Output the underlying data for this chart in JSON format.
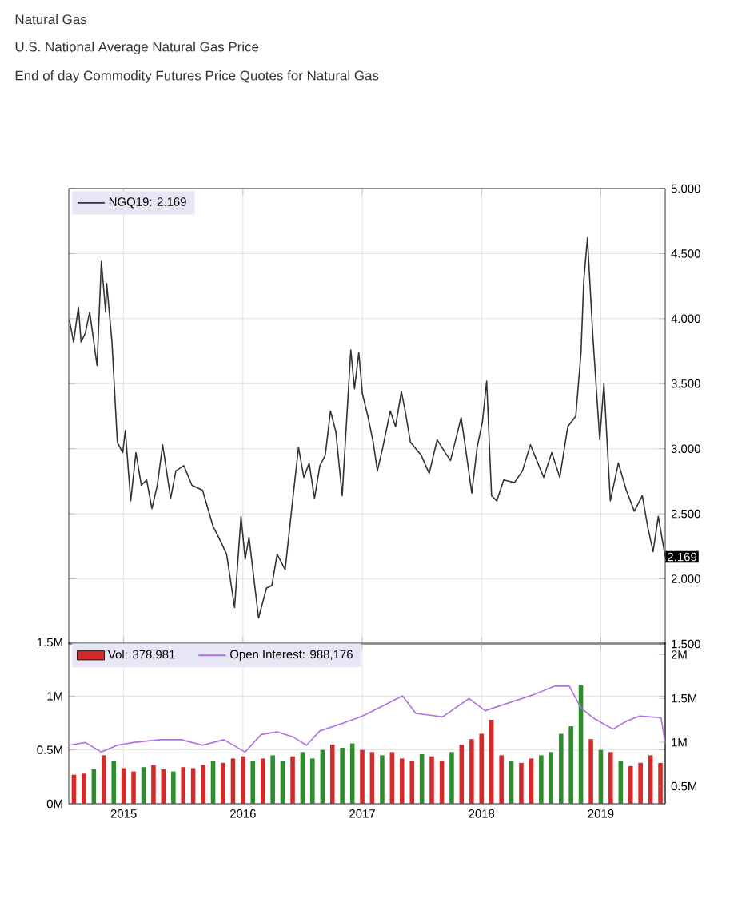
{
  "chart_data": [
    {
      "type": "line",
      "title": "Natural Gas",
      "subtitle": "U.S. National Average Natural Gas Price",
      "annotations": [
        "End of day Commodity Futures Price Quotes for Natural Gas",
        {
          "text": "2.169",
          "x": 2019.54,
          "y": 2.169
        }
      ],
      "x": [
        2014.545,
        2014.58,
        2014.621,
        2014.643,
        2014.679,
        2014.715,
        2014.777,
        2014.813,
        2014.849,
        2014.858,
        2014.902,
        2014.947,
        2014.992,
        2015.014,
        2015.059,
        2015.103,
        2015.148,
        2015.193,
        2015.237,
        2015.282,
        2015.327,
        2015.394,
        2015.438,
        2015.505,
        2015.572,
        2015.662,
        2015.751,
        2015.796,
        2015.863,
        2015.93,
        2015.984,
        2016.019,
        2016.051,
        2016.131,
        2016.198,
        2016.243,
        2016.287,
        2016.354,
        2016.421,
        2016.466,
        2016.511,
        2016.555,
        2016.6,
        2016.645,
        2016.69,
        2016.734,
        2016.779,
        2016.832,
        2016.904,
        2016.935,
        2016.971,
        2017.002,
        2017.047,
        2017.092,
        2017.127,
        2017.172,
        2017.235,
        2017.279,
        2017.328,
        2017.36,
        2017.404,
        2017.494,
        2017.561,
        2017.628,
        2017.695,
        2017.74,
        2017.829,
        2017.874,
        2017.918,
        2017.963,
        2018.008,
        2018.043,
        2018.084,
        2018.128,
        2018.186,
        2018.276,
        2018.343,
        2018.41,
        2018.454,
        2018.521,
        2018.589,
        2018.656,
        2018.723,
        2018.79,
        2018.834,
        2018.857,
        2018.888,
        2018.933,
        2018.991,
        2019.026,
        2019.08,
        2019.147,
        2019.214,
        2019.281,
        2019.348,
        2019.393,
        2019.438,
        2019.482,
        2019.54
      ],
      "series": [
        {
          "name": "NGQ19: 2.169",
          "color": "#333333",
          "values": [
            3.99,
            3.82,
            4.09,
            3.82,
            3.89,
            4.05,
            3.64,
            4.44,
            4.05,
            4.27,
            3.82,
            3.05,
            2.97,
            3.14,
            2.6,
            2.97,
            2.72,
            2.76,
            2.54,
            2.72,
            3.03,
            2.62,
            2.83,
            2.87,
            2.72,
            2.68,
            2.4,
            2.32,
            2.19,
            1.78,
            2.48,
            2.15,
            2.32,
            1.7,
            1.93,
            1.95,
            2.19,
            2.07,
            2.64,
            3.01,
            2.78,
            2.89,
            2.62,
            2.87,
            2.95,
            3.29,
            3.13,
            2.64,
            3.76,
            3.46,
            3.74,
            3.42,
            3.25,
            3.05,
            2.83,
            3.01,
            3.29,
            3.17,
            3.44,
            3.29,
            3.05,
            2.95,
            2.81,
            3.07,
            2.97,
            2.91,
            3.24,
            2.95,
            2.66,
            3.01,
            3.21,
            3.52,
            2.64,
            2.6,
            2.76,
            2.74,
            2.83,
            3.03,
            2.93,
            2.78,
            2.97,
            2.78,
            3.17,
            3.25,
            3.74,
            4.29,
            4.62,
            3.87,
            3.07,
            3.5,
            2.6,
            2.89,
            2.68,
            2.52,
            2.64,
            2.4,
            2.21,
            2.48,
            2.169
          ]
        }
      ],
      "xlim": [
        2014.54,
        2019.54
      ],
      "xticks": [
        {
          "value": 2015,
          "label": null
        },
        {
          "value": 2016,
          "label": null
        },
        {
          "value": 2017,
          "label": null
        },
        {
          "value": 2018,
          "label": null
        },
        {
          "value": 2019,
          "label": null
        }
      ],
      "ylim": [
        1.5,
        5
      ],
      "yticks": [
        {
          "value": 1.5,
          "label": "1.500"
        },
        {
          "value": 2,
          "label": "2.000"
        },
        {
          "value": 2.5,
          "label": "2.500"
        },
        {
          "value": 3,
          "label": "3.000"
        },
        {
          "value": 3.5,
          "label": "3.500"
        },
        {
          "value": 4,
          "label": "4.000"
        },
        {
          "value": 4.5,
          "label": "4.500"
        },
        {
          "value": 5,
          "label": "5.000"
        }
      ],
      "tick_labels": "y",
      "grid": true,
      "legend": "top left"
    },
    {
      "type": "bar",
      "series": [
        {
          "name": "Vol: 378,981",
          "color": "#d42a2a",
          "x": [
            2014.583,
            2014.667,
            2014.75,
            2014.833,
            2014.917,
            2015.0,
            2015.083,
            2015.167,
            2015.25,
            2015.333,
            2015.417,
            2015.5,
            2015.583,
            2015.667,
            2015.75,
            2015.833,
            2015.917,
            2016.0,
            2016.083,
            2016.167,
            2016.25,
            2016.333,
            2016.417,
            2016.5,
            2016.583,
            2016.667,
            2016.75,
            2016.833,
            2016.917,
            2017.0,
            2017.083,
            2017.167,
            2017.25,
            2017.333,
            2017.417,
            2017.5,
            2017.583,
            2017.667,
            2017.75,
            2017.833,
            2017.917,
            2018.0,
            2018.083,
            2018.167,
            2018.25,
            2018.333,
            2018.417,
            2018.5,
            2018.583,
            2018.667,
            2018.75,
            2018.833,
            2018.917,
            2019.0,
            2019.083,
            2019.167,
            2019.25,
            2019.333,
            2019.417,
            2019.5
          ],
          "values": [
            270000,
            280000,
            320000,
            450000,
            400000,
            330000,
            300000,
            340000,
            360000,
            320000,
            300000,
            340000,
            330000,
            360000,
            400000,
            380000,
            420000,
            440000,
            400000,
            420000,
            450000,
            400000,
            440000,
            480000,
            420000,
            500000,
            550000,
            520000,
            560000,
            500000,
            480000,
            450000,
            480000,
            420000,
            400000,
            460000,
            440000,
            400000,
            480000,
            550000,
            600000,
            650000,
            780000,
            450000,
            400000,
            380000,
            420000,
            450000,
            480000,
            650000,
            720000,
            1100000,
            600000,
            500000,
            480000,
            400000,
            350000,
            380000,
            450000,
            378981
          ],
          "colors": [
            "#d42a2a",
            "#d42a2a",
            "#2e8b2e",
            "#d42a2a",
            "#2e8b2e",
            "#d42a2a",
            "#d42a2a",
            "#2e8b2e",
            "#d42a2a",
            "#d42a2a",
            "#2e8b2e",
            "#d42a2a",
            "#d42a2a",
            "#d42a2a",
            "#2e8b2e",
            "#d42a2a",
            "#d42a2a",
            "#d42a2a",
            "#2e8b2e",
            "#d42a2a",
            "#2e8b2e",
            "#2e8b2e",
            "#d42a2a",
            "#2e8b2e",
            "#2e8b2e",
            "#2e8b2e",
            "#d42a2a",
            "#2e8b2e",
            "#2e8b2e",
            "#d42a2a",
            "#d42a2a",
            "#2e8b2e",
            "#d42a2a",
            "#d42a2a",
            "#d42a2a",
            "#2e8b2e",
            "#d42a2a",
            "#d42a2a",
            "#2e8b2e",
            "#d42a2a",
            "#d42a2a",
            "#d42a2a",
            "#d42a2a",
            "#d42a2a",
            "#2e8b2e",
            "#d42a2a",
            "#d42a2a",
            "#2e8b2e",
            "#2e8b2e",
            "#2e8b2e",
            "#2e8b2e",
            "#2e8b2e",
            "#d42a2a",
            "#2e8b2e",
            "#d42a2a",
            "#2e8b2e",
            "#d42a2a",
            "#d42a2a",
            "#d42a2a",
            "#d42a2a"
          ]
        },
        {
          "name": "Open Interest: 988,176",
          "type": "line",
          "axis": "y2",
          "color": "#b070e0",
          "x": [
            2014.545,
            2014.679,
            2014.813,
            2014.947,
            2015.081,
            2015.304,
            2015.483,
            2015.662,
            2015.841,
            2016.019,
            2016.153,
            2016.287,
            2016.422,
            2016.533,
            2016.645,
            2016.824,
            2017.002,
            2017.181,
            2017.337,
            2017.449,
            2017.673,
            2017.896,
            2018.03,
            2018.164,
            2018.298,
            2018.432,
            2018.611,
            2018.736,
            2018.834,
            2018.946,
            2019.102,
            2019.214,
            2019.326,
            2019.505,
            2019.54
          ],
          "values": [
            967000,
            998000,
            889000,
            967000,
            998000,
            1030000,
            1030000,
            967000,
            1030000,
            889000,
            1089000,
            1120000,
            1060000,
            967000,
            1130000,
            1210000,
            1300000,
            1420000,
            1530000,
            1330000,
            1290000,
            1500000,
            1360000,
            1420000,
            1480000,
            1540000,
            1640000,
            1640000,
            1390000,
            1270000,
            1150000,
            1240000,
            1300000,
            1280000,
            988176
          ]
        }
      ],
      "xlim": [
        2014.54,
        2019.54
      ],
      "xticks": [
        2015,
        2016,
        2017,
        2018,
        2019
      ],
      "ylim": [
        0,
        1500000
      ],
      "yticks": [
        {
          "value": 0,
          "label": "0M"
        },
        {
          "value": 500000,
          "label": "0.5M"
        },
        {
          "value": 1000000,
          "label": "1M"
        },
        {
          "value": 1500000,
          "label": "1.5M"
        }
      ],
      "y2lim": [
        300000,
        2140000
      ],
      "y2ticks": [
        {
          "value": 500000,
          "label": "0.5M"
        },
        {
          "value": 1000000,
          "label": "1M"
        },
        {
          "value": 1500000,
          "label": "1.5M"
        },
        {
          "value": 2000000,
          "label": "2M"
        }
      ],
      "grid": true,
      "legend": "top left"
    }
  ]
}
